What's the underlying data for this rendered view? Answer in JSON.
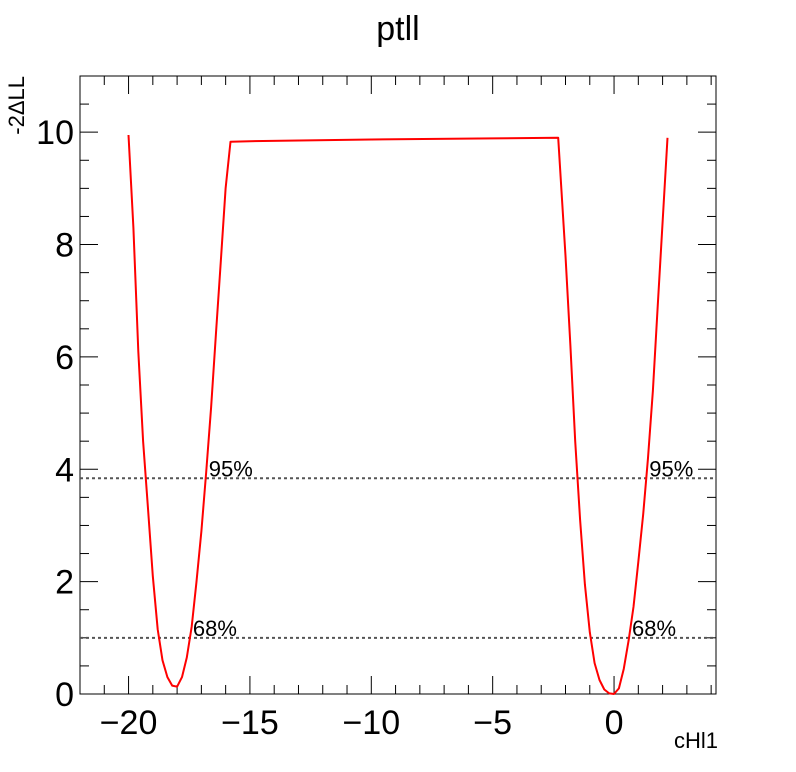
{
  "chart_data": {
    "type": "line",
    "title": "ptll",
    "xlabel": "cHl1",
    "ylabel": "-2ΔLL",
    "xlim": [
      -22.0,
      4.2
    ],
    "ylim": [
      0,
      11.0
    ],
    "x_ticks": [
      -20,
      -15,
      -10,
      -5,
      0
    ],
    "x_tick_labels": [
      "−20",
      "−15",
      "−10",
      "−5",
      "0"
    ],
    "y_ticks": [
      0,
      2,
      4,
      6,
      8,
      10
    ],
    "y_tick_labels": [
      "0",
      "2",
      "4",
      "6",
      "8",
      "10"
    ],
    "grid": false,
    "series": [
      {
        "color": "#ff0000",
        "x": [
          -20.0,
          -19.8,
          -19.6,
          -19.4,
          -19.2,
          -19.0,
          -18.8,
          -18.6,
          -18.4,
          -18.2,
          -18.0,
          -17.8,
          -17.6,
          -17.4,
          -17.2,
          -17.0,
          -16.8,
          -16.6,
          -16.4,
          -16.2,
          -16.0,
          -15.8,
          -15.0,
          -10.0,
          -5.0,
          -2.3,
          -2.0,
          -1.8,
          -1.6,
          -1.4,
          -1.2,
          -1.0,
          -0.8,
          -0.6,
          -0.4,
          -0.2,
          0.0,
          0.2,
          0.4,
          0.6,
          0.8,
          1.0,
          1.2,
          1.4,
          1.6,
          1.8,
          2.0,
          2.2
        ],
        "y": [
          9.95,
          8.3,
          6.1,
          4.5,
          3.3,
          2.1,
          1.15,
          0.6,
          0.3,
          0.15,
          0.13,
          0.3,
          0.65,
          1.2,
          2.0,
          2.9,
          3.95,
          5.1,
          6.4,
          7.7,
          9.0,
          9.83,
          9.84,
          9.87,
          9.89,
          9.9,
          7.8,
          6.2,
          4.5,
          3.1,
          1.95,
          1.1,
          0.55,
          0.25,
          0.08,
          0.01,
          0.0,
          0.1,
          0.45,
          0.95,
          1.55,
          2.35,
          3.2,
          4.2,
          5.4,
          6.9,
          8.4,
          9.9
        ]
      }
    ],
    "reference_lines": [
      {
        "y": 3.84,
        "color": "#555555",
        "label": "95%"
      },
      {
        "y": 1.0,
        "color": "#555555",
        "label": "68%"
      }
    ]
  }
}
